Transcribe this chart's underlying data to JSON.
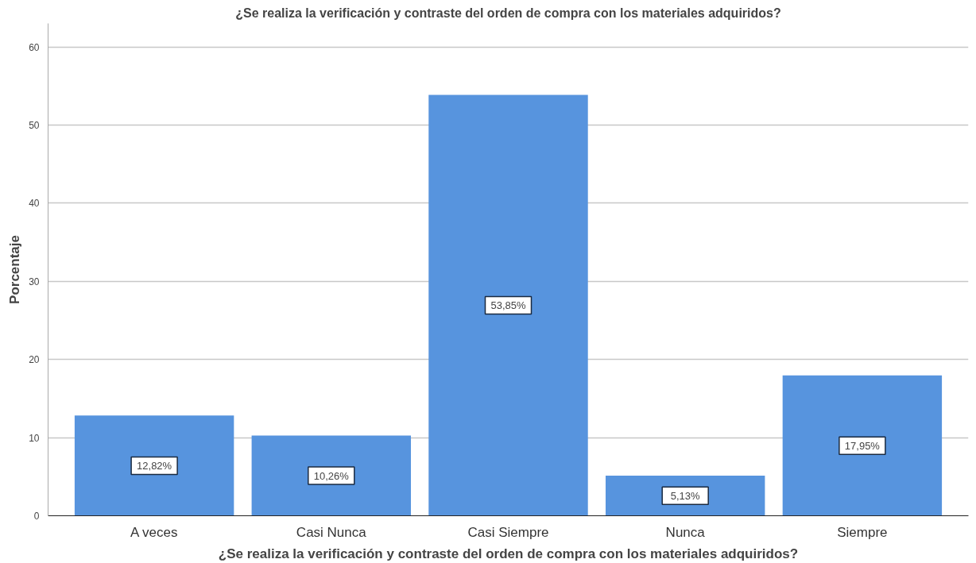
{
  "chart_data": {
    "type": "bar",
    "title": "¿Se realiza la verificación y contraste del orden de compra con los materiales adquiridos?",
    "xlabel": "¿Se realiza la verificación y contraste del orden de compra con los materiales adquiridos?",
    "ylabel": "Porcentaje",
    "categories": [
      "A veces",
      "Casi Nunca",
      "Casi Siempre",
      "Nunca",
      "Siempre"
    ],
    "values": [
      12.82,
      10.26,
      53.85,
      5.13,
      17.95
    ],
    "value_labels": [
      "12,82%",
      "10,26%",
      "53,85%",
      "5,13%",
      "17,95%"
    ],
    "color": "#5794de",
    "ylim": [
      0,
      63
    ],
    "yticks": [
      0,
      10,
      20,
      30,
      40,
      50,
      60
    ],
    "grid": "y"
  }
}
